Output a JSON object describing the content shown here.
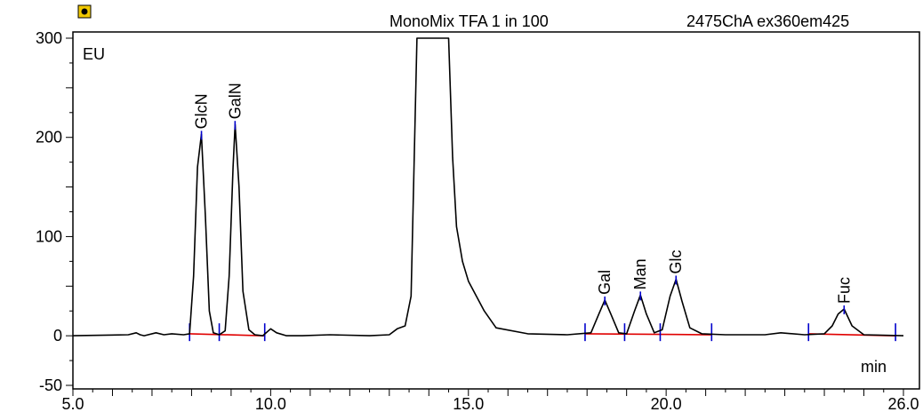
{
  "header": {
    "sample_name": "MonoMix TFA 1 in 100",
    "detector_name": "2475ChA ex360em425",
    "app_icon": "chromeleon-app-icon"
  },
  "chart_data": {
    "type": "line",
    "title": "MonoMix TFA 1 in 100",
    "subtitle": "2475ChA ex360em425",
    "ylabel": "EU",
    "xlabel": "min",
    "xlim": [
      5.0,
      26.0
    ],
    "ylim": [
      -50,
      300
    ],
    "x_ticks": [
      5.0,
      10.0,
      15.0,
      20.0,
      26.0
    ],
    "x_tick_labels": [
      "5.0",
      "10.0",
      "15.0",
      "20.0",
      "26.0"
    ],
    "y_ticks": [
      -50,
      0,
      100,
      200,
      300
    ],
    "y_tick_labels": [
      "-50",
      "0",
      "100",
      "200",
      "300"
    ],
    "grid": false,
    "colors": {
      "trace": "#000000",
      "baseline": "#e00000",
      "marker": "#0000cc"
    },
    "series": [
      {
        "x": [
          5.0,
          6.4,
          6.6,
          6.7,
          6.8,
          7.1,
          7.3,
          7.5,
          7.8,
          7.95,
          8.05,
          8.15,
          8.25,
          8.35,
          8.45,
          8.55,
          8.7,
          8.85,
          8.95,
          9.05,
          9.1,
          9.2,
          9.3,
          9.45,
          9.6,
          9.8,
          10.0,
          10.15,
          10.4,
          10.8,
          11.5,
          12.5,
          13.0,
          13.2,
          13.4,
          13.55,
          13.7,
          14.5,
          14.6,
          14.7,
          14.85,
          15.0,
          15.2,
          15.4,
          15.7,
          16.5,
          17.5,
          18.1,
          18.3,
          18.45,
          18.6,
          18.8,
          19.0,
          19.2,
          19.35,
          19.5,
          19.7,
          19.9,
          20.1,
          20.25,
          20.4,
          20.6,
          20.9,
          21.5,
          22.5,
          22.9,
          23.5,
          24.0,
          24.2,
          24.35,
          24.5,
          24.7,
          25.0,
          26.0
        ],
        "y": [
          0,
          1,
          3,
          1,
          0,
          3,
          1,
          2,
          1,
          2,
          60,
          170,
          203,
          120,
          25,
          3,
          1,
          5,
          60,
          170,
          213,
          150,
          45,
          6,
          1,
          0,
          7,
          3,
          0,
          0,
          1,
          0,
          1,
          7,
          10,
          40,
          300,
          300,
          180,
          110,
          75,
          55,
          40,
          25,
          8,
          2,
          1,
          3,
          22,
          36,
          22,
          3,
          2,
          25,
          41,
          22,
          3,
          6,
          40,
          57,
          35,
          8,
          2,
          1,
          1,
          3,
          1,
          2,
          10,
          22,
          27,
          10,
          1,
          0
        ]
      }
    ],
    "peaks": [
      {
        "name": "GlcN",
        "rt": 8.25,
        "height": 203
      },
      {
        "name": "GalN",
        "rt": 9.1,
        "height": 213
      },
      {
        "name": "Gal",
        "rt": 18.45,
        "height": 36
      },
      {
        "name": "Man",
        "rt": 19.35,
        "height": 41
      },
      {
        "name": "Glc",
        "rt": 20.25,
        "height": 57
      },
      {
        "name": "Fuc",
        "rt": 24.5,
        "height": 27
      }
    ],
    "baselines": [
      {
        "x": [
          7.95,
          9.85
        ],
        "y": [
          2,
          0
        ]
      },
      {
        "x": [
          17.95,
          21.15
        ],
        "y": [
          2,
          1
        ]
      },
      {
        "x": [
          23.6,
          25.8
        ],
        "y": [
          2,
          0
        ]
      }
    ],
    "integration_ticks": [
      7.95,
      8.7,
      9.85,
      17.95,
      18.95,
      19.85,
      21.15,
      23.6,
      25.8
    ]
  }
}
